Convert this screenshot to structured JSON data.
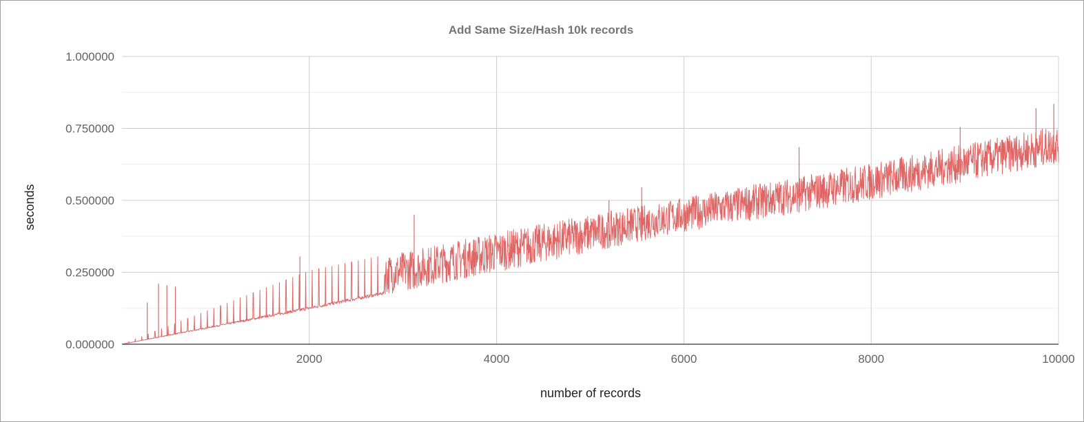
{
  "chart_data": {
    "type": "line",
    "title": "Add Same Size/Hash 10k records",
    "xlabel": "number of records",
    "ylabel": "seconds",
    "xlim": [
      0,
      10000
    ],
    "ylim": [
      0,
      1
    ],
    "x_ticks": [
      2000,
      4000,
      6000,
      8000,
      10000
    ],
    "x_tick_labels": [
      "2000",
      "4000",
      "6000",
      "8000",
      "10000"
    ],
    "y_ticks": [
      0,
      0.25,
      0.5,
      0.75,
      1
    ],
    "y_tick_labels": [
      "0.000000",
      "0.250000",
      "0.500000",
      "0.750000",
      "1.000000"
    ],
    "grid": true,
    "legend": "none",
    "series": [
      {
        "color": "#e06666",
        "trend": {
          "x": [
            0,
            2000,
            4000,
            6000,
            8000,
            10000
          ],
          "lower": [
            0.0,
            0.12,
            0.25,
            0.39,
            0.5,
            0.63
          ],
          "upper": [
            0.0,
            0.255,
            0.39,
            0.51,
            0.63,
            0.76
          ]
        },
        "peaks": [
          {
            "x": 270,
            "y": 0.145
          },
          {
            "x": 390,
            "y": 0.21
          },
          {
            "x": 480,
            "y": 0.205
          },
          {
            "x": 570,
            "y": 0.2
          },
          {
            "x": 1900,
            "y": 0.305
          },
          {
            "x": 3120,
            "y": 0.45
          },
          {
            "x": 5200,
            "y": 0.5
          },
          {
            "x": 5550,
            "y": 0.545
          },
          {
            "x": 7230,
            "y": 0.685
          },
          {
            "x": 8950,
            "y": 0.755
          },
          {
            "x": 9760,
            "y": 0.82
          },
          {
            "x": 9950,
            "y": 0.835
          }
        ]
      }
    ]
  }
}
